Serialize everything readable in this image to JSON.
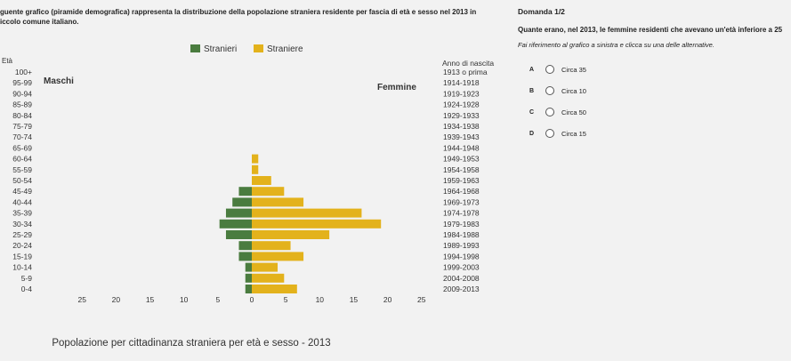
{
  "intro": {
    "line1": "guente grafico (piramide demografica) rappresenta la distribuzione della popolazione straniera residente per fascia di età e sesso nel 2013 in",
    "line2": "iccolo comune italiano."
  },
  "question": {
    "header": "Domanda 1/2",
    "text": "Quante erano, nel 2013, le femmine residenti che avevano un'età inferiore a 25",
    "hint": "Fai riferimento al grafico a sinistra e clicca su una delle alternative.",
    "options": [
      {
        "letter": "A",
        "label": "Circa 35"
      },
      {
        "letter": "B",
        "label": "Circa 10"
      },
      {
        "letter": "C",
        "label": "Circa 50"
      },
      {
        "letter": "D",
        "label": "Circa 15"
      }
    ]
  },
  "chart_data": {
    "type": "bar",
    "title": "Popolazione per cittadinanza straniera per età e sesso - 2013",
    "left_axis_title": "Età",
    "right_axis_title": "Anno di nascita",
    "male_label": "Maschi",
    "female_label": "Femmine",
    "legend": [
      {
        "name": "Stranieri",
        "color": "#4a7c3f"
      },
      {
        "name": "Straniere",
        "color": "#e3b21c"
      }
    ],
    "colors": {
      "male": "#4a7c3f",
      "female": "#e3b21c"
    },
    "age_groups": [
      "100+",
      "95-99",
      "90-94",
      "85-89",
      "80-84",
      "75-79",
      "70-74",
      "65-69",
      "60-64",
      "55-59",
      "50-54",
      "45-49",
      "40-44",
      "35-39",
      "30-34",
      "25-29",
      "20-24",
      "15-19",
      "10-14",
      "5-9",
      "0-4"
    ],
    "birth_years": [
      "1913 o prima",
      "1914-1918",
      "1919-1923",
      "1924-1928",
      "1929-1933",
      "1934-1938",
      "1939-1943",
      "1944-1948",
      "1949-1953",
      "1954-1958",
      "1959-1963",
      "1964-1968",
      "1969-1973",
      "1974-1978",
      "1979-1983",
      "1984-1988",
      "1989-1993",
      "1994-1998",
      "1999-2003",
      "2004-2008",
      "2009-2013"
    ],
    "series": [
      {
        "name": "Stranieri",
        "values": [
          0,
          0,
          0,
          0,
          0,
          0,
          0,
          0,
          0,
          0,
          0,
          2,
          3,
          4,
          5,
          4,
          2,
          2,
          1,
          1,
          1
        ]
      },
      {
        "name": "Straniere",
        "values": [
          0,
          0,
          0,
          0,
          0,
          0,
          0,
          0,
          1,
          1,
          3,
          5,
          8,
          17,
          20,
          12,
          6,
          8,
          4,
          5,
          7
        ]
      }
    ],
    "x_ticks": [
      "25",
      "20",
      "15",
      "10",
      "5",
      "0",
      "5",
      "10",
      "15",
      "20",
      "25"
    ],
    "xlim": [
      -25,
      25
    ]
  }
}
